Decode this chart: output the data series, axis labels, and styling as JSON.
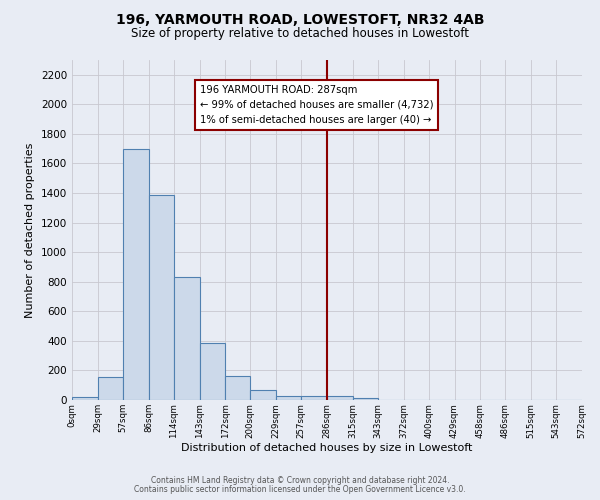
{
  "title": "196, YARMOUTH ROAD, LOWESTOFT, NR32 4AB",
  "subtitle": "Size of property relative to detached houses in Lowestoft",
  "xlabel": "Distribution of detached houses by size in Lowestoft",
  "ylabel": "Number of detached properties",
  "bin_edges": [
    0,
    29,
    57,
    86,
    114,
    143,
    172,
    200,
    229,
    257,
    286,
    315,
    343,
    372,
    400,
    429,
    458,
    486,
    515,
    543,
    572
  ],
  "bar_heights": [
    20,
    155,
    1700,
    1390,
    830,
    385,
    165,
    65,
    30,
    30,
    30,
    15,
    0,
    0,
    0,
    0,
    0,
    0,
    0,
    0
  ],
  "bar_facecolor": "#ccd9ea",
  "bar_edgecolor": "#5080b0",
  "vline_x": 286,
  "vline_color": "#8b0000",
  "annotation_line1": "196 YARMOUTH ROAD: 287sqm",
  "annotation_line2": "← 99% of detached houses are smaller (4,732)",
  "annotation_line3": "1% of semi-detached houses are larger (40) →",
  "annotation_box_edgecolor": "#8b0000",
  "annotation_box_facecolor": "white",
  "ylim": [
    0,
    2300
  ],
  "yticks": [
    0,
    200,
    400,
    600,
    800,
    1000,
    1200,
    1400,
    1600,
    1800,
    2000,
    2200
  ],
  "grid_color": "#c8c8d0",
  "bg_color": "#e8ecf4",
  "footer1": "Contains HM Land Registry data © Crown copyright and database right 2024.",
  "footer2": "Contains public sector information licensed under the Open Government Licence v3.0.",
  "title_fontsize": 10,
  "subtitle_fontsize": 8.5,
  "ylabel_fontsize": 8,
  "xlabel_fontsize": 8,
  "ytick_fontsize": 7.5,
  "xtick_fontsize": 6.2
}
